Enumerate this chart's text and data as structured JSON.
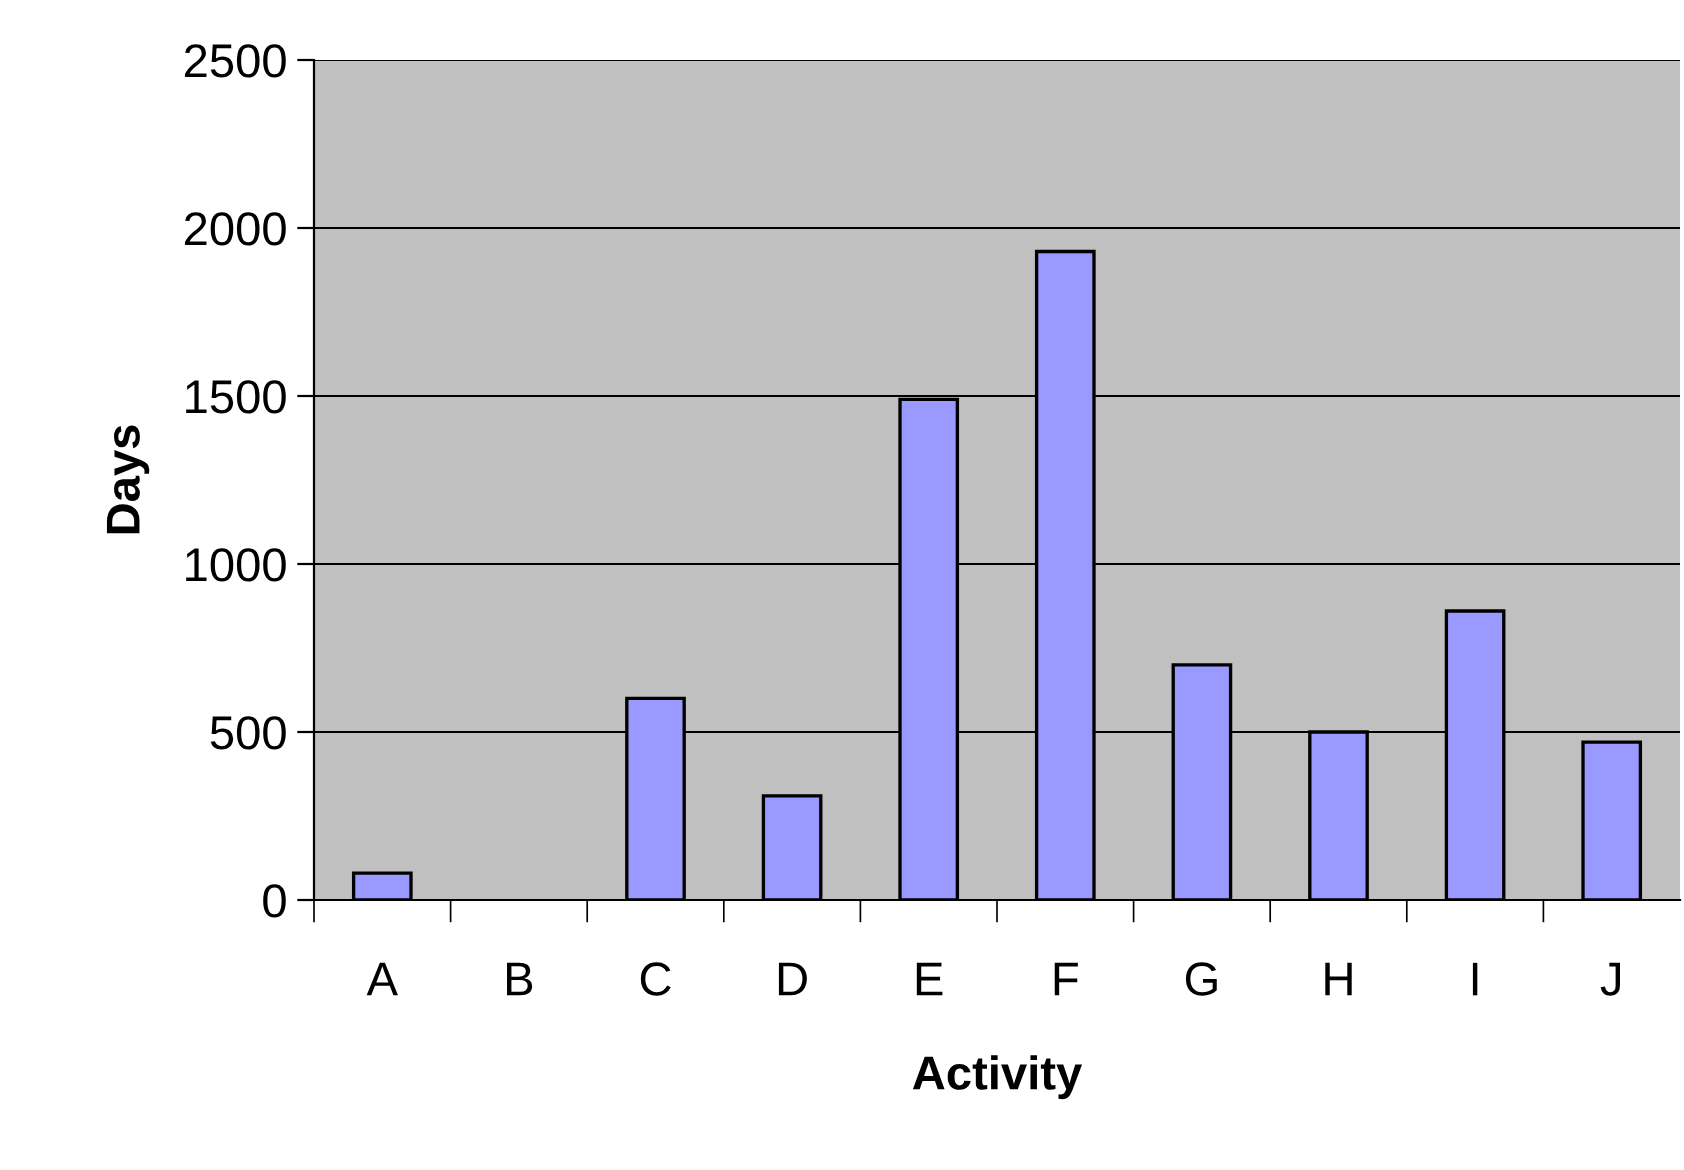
{
  "chart_data": {
    "type": "bar",
    "xlabel": "Activity",
    "ylabel": "Days",
    "categories": [
      "A",
      "B",
      "C",
      "D",
      "E",
      "F",
      "G",
      "H",
      "I",
      "J"
    ],
    "values": [
      80,
      null,
      600,
      310,
      1490,
      1930,
      700,
      500,
      860,
      470
    ],
    "color": "#9999ff",
    "ylim": [
      0,
      2500
    ],
    "yticks": [
      0,
      500,
      1000,
      1500,
      2000,
      2500
    ],
    "grid": "y",
    "legend": false
  }
}
